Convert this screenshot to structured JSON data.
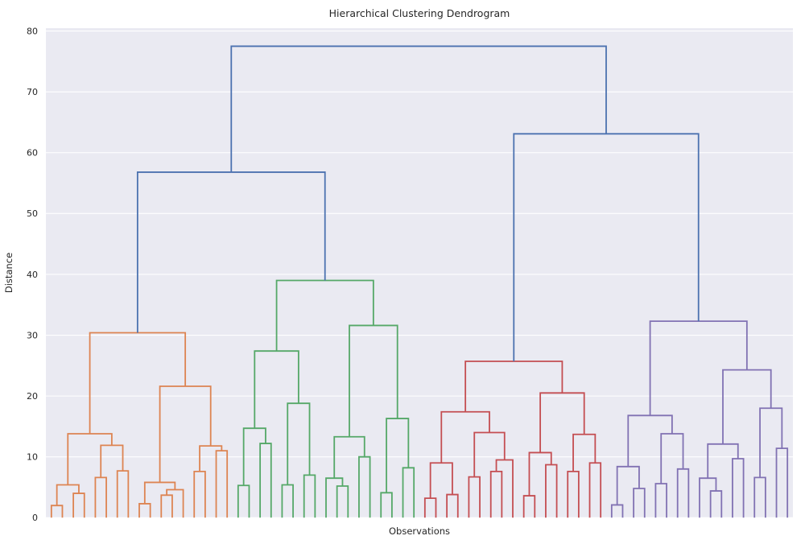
{
  "figure": {
    "title": "Hierarchical Clustering Dendrogram",
    "xlabel": "Observations",
    "ylabel": "Distance"
  },
  "chart_data": {
    "type": "dendrogram",
    "title": "Hierarchical Clustering Dendrogram",
    "xlabel": "Observations",
    "ylabel": "Distance",
    "ylim": [
      0,
      80.47
    ],
    "yticks": [
      0,
      10,
      20,
      30,
      40,
      50,
      60,
      70,
      80
    ],
    "grid": true,
    "legend": "none",
    "n_leaves": 68,
    "leaves_per_cluster": 17,
    "plot_background": "#eaeaf2",
    "grid_color": "#ffffff",
    "text_color": "#262626",
    "line_width": 1.8,
    "link_color_above_threshold": "#4c72b0",
    "cluster_colors": [
      "#dd8452",
      "#55a868",
      "#c44e52",
      "#8172b3"
    ],
    "tree_format": "node=[merge_height,left_child,right_child], leaf=local index 0-16",
    "clusters": [
      {
        "name": "cluster-1-orange",
        "color": "#dd8452",
        "tree": [
          30.4,
          [
            13.8,
            [
              5.4,
              [
                2.0,
                0,
                1
              ],
              [
                4.0,
                2,
                3
              ]
            ],
            [
              11.9,
              [
                6.6,
                4,
                5
              ],
              [
                7.7,
                6,
                7
              ]
            ]
          ],
          [
            21.6,
            [
              5.8,
              [
                2.3,
                8,
                9
              ],
              [
                4.6,
                [
                  3.7,
                  10,
                  11
                ],
                12
              ]
            ],
            [
              11.8,
              [
                7.6,
                13,
                14
              ],
              [
                11.0,
                15,
                16
              ]
            ]
          ]
        ]
      },
      {
        "name": "cluster-2-green",
        "color": "#55a868",
        "tree": [
          39.0,
          [
            27.4,
            [
              14.7,
              [
                5.3,
                0,
                1
              ],
              [
                12.2,
                2,
                3
              ]
            ],
            [
              18.8,
              [
                5.4,
                4,
                5
              ],
              [
                7.0,
                6,
                7
              ]
            ]
          ],
          [
            31.6,
            [
              13.3,
              [
                6.5,
                8,
                [
                  5.2,
                  9,
                  10
                ]
              ],
              [
                10.0,
                11,
                12
              ]
            ],
            [
              16.3,
              [
                4.1,
                13,
                14
              ],
              [
                8.2,
                15,
                16
              ]
            ]
          ]
        ]
      },
      {
        "name": "cluster-3-red",
        "color": "#c44e52",
        "tree": [
          25.7,
          [
            17.4,
            [
              9.0,
              [
                3.2,
                0,
                1
              ],
              [
                3.8,
                2,
                3
              ]
            ],
            [
              14.0,
              [
                6.7,
                4,
                5
              ],
              [
                9.5,
                [
                  7.6,
                  6,
                  7
                ],
                8
              ]
            ]
          ],
          [
            20.5,
            [
              10.7,
              [
                3.6,
                9,
                10
              ],
              [
                8.7,
                11,
                12
              ]
            ],
            [
              13.7,
              [
                7.6,
                13,
                14
              ],
              [
                9.0,
                15,
                16
              ]
            ]
          ]
        ]
      },
      {
        "name": "cluster-4-purple",
        "color": "#8172b3",
        "tree": [
          32.3,
          [
            16.8,
            [
              8.4,
              [
                2.1,
                0,
                1
              ],
              [
                4.8,
                2,
                3
              ]
            ],
            [
              13.8,
              [
                5.6,
                4,
                5
              ],
              [
                8.0,
                6,
                7
              ]
            ]
          ],
          [
            24.3,
            [
              12.1,
              [
                6.5,
                8,
                [
                  4.4,
                  9,
                  10
                ]
              ],
              [
                9.7,
                11,
                12
              ]
            ],
            [
              18.0,
              [
                6.6,
                13,
                14
              ],
              [
                11.4,
                15,
                16
              ]
            ]
          ]
        ]
      }
    ],
    "top_links": {
      "left_height": 56.8,
      "right_height": 63.1,
      "root_height": 77.5
    }
  }
}
